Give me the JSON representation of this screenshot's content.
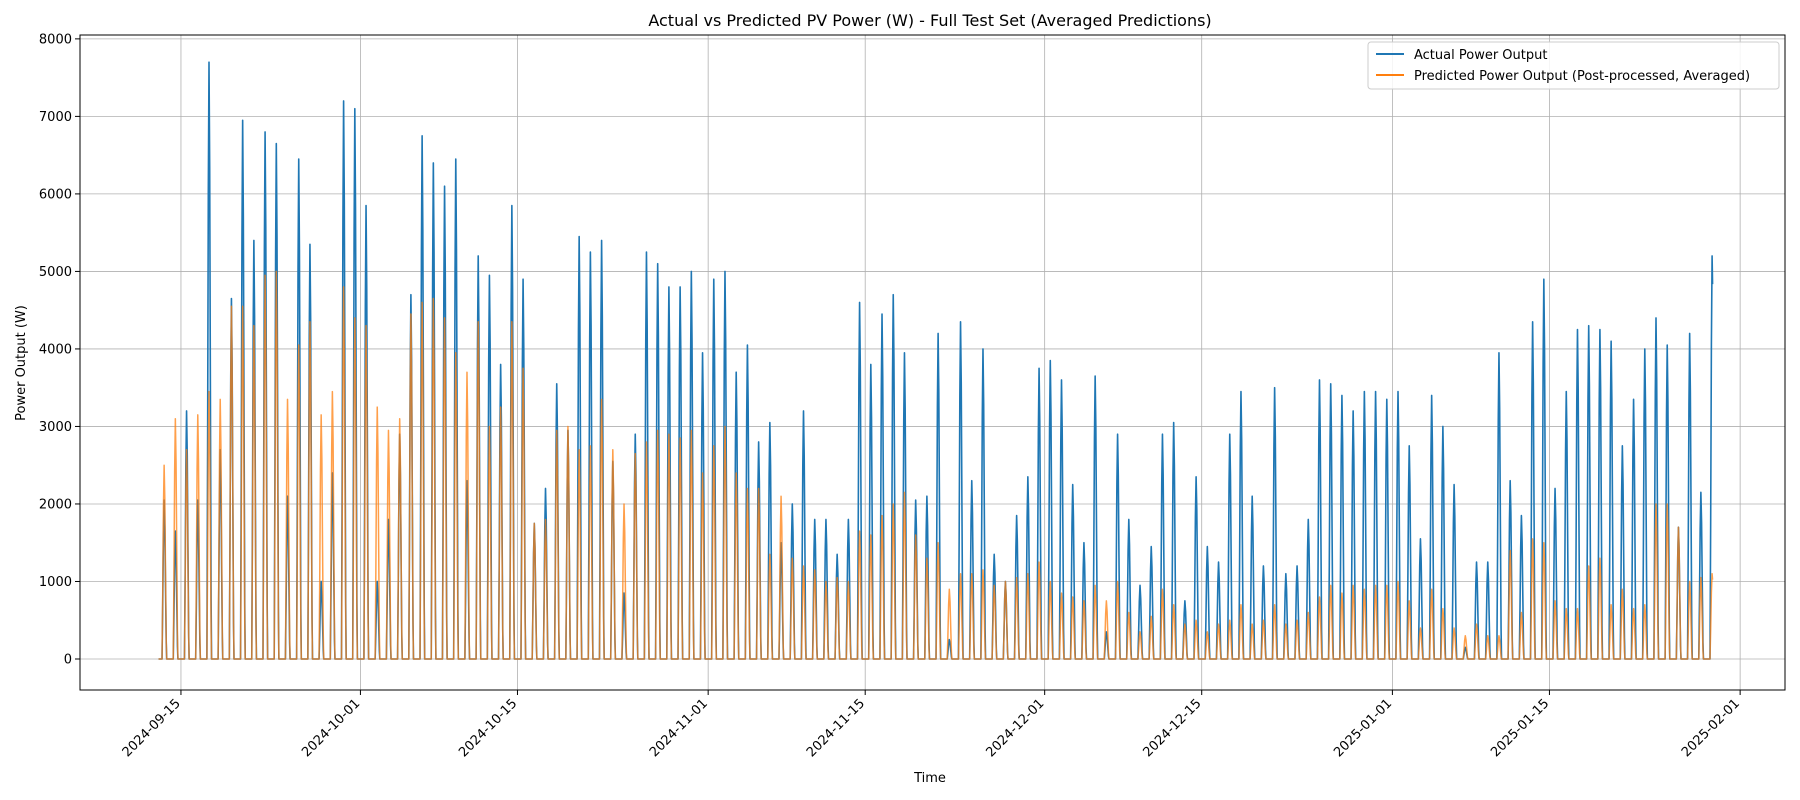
{
  "chart_data": {
    "type": "line",
    "title": "Actual vs Predicted PV Power (W) - Full Test Set (Averaged Predictions)",
    "xlabel": "Time",
    "ylabel": "Power Output (W)",
    "x_range": [
      "2024-09-06",
      "2025-02-05"
    ],
    "ylim": [
      -400,
      8050
    ],
    "y_ticks": [
      0,
      1000,
      2000,
      3000,
      4000,
      5000,
      6000,
      7000,
      8000
    ],
    "x_ticks": [
      "2024-09-15",
      "2024-10-01",
      "2024-10-15",
      "2024-11-01",
      "2024-11-15",
      "2024-12-01",
      "2024-12-15",
      "2025-01-01",
      "2025-01-15",
      "2025-02-01"
    ],
    "grid": true,
    "legend_position": "top-right",
    "daily_series_start_date": "2024-09-13",
    "series": [
      {
        "name": "Actual Power Output",
        "color": "#1f77b4",
        "daily_peaks": [
          2050,
          1650,
          3200,
          2050,
          7700,
          2700,
          4650,
          6950,
          5400,
          6800,
          6650,
          2100,
          6450,
          5350,
          1000,
          2400,
          7200,
          7100,
          5850,
          1000,
          1800,
          2900,
          4700,
          6750,
          6400,
          6100,
          6450,
          2300,
          5200,
          4950,
          3800,
          5850,
          4900,
          1750,
          2200,
          3550,
          2950,
          5450,
          5250,
          5400,
          2550,
          850,
          2900,
          5250,
          5100,
          4800,
          4800,
          5000,
          3950,
          4900,
          5000,
          3700,
          4050,
          2800,
          3050,
          1500,
          2000,
          3200,
          1800,
          1800,
          1350,
          1800,
          4600,
          3800,
          4450,
          4700,
          3950,
          2050,
          2100,
          4200,
          250,
          4350,
          2300,
          4000,
          1350,
          1000,
          1850,
          2350,
          3750,
          3850,
          3600,
          2250,
          1500,
          3650,
          350,
          2900,
          1800,
          950,
          1450,
          2900,
          3050,
          750,
          2350,
          1450,
          1250,
          2900,
          3450,
          2100,
          1200,
          3500,
          1100,
          1200,
          1800,
          3600,
          3550,
          3400,
          3200,
          3450,
          3450,
          3350,
          3450,
          2750,
          1550,
          3400,
          3000,
          2250,
          150,
          1250,
          1250,
          3950,
          2300,
          1850,
          4350,
          4900,
          2200,
          3450,
          4250,
          4300,
          4250,
          4100,
          2750,
          3350,
          4000,
          4400,
          4050,
          1700,
          4200,
          2150,
          5200
        ],
        "last_day_partial": 0.55
      },
      {
        "name": "Predicted Power Output (Post-processed, Averaged)",
        "color": "#ff7f0e",
        "daily_peaks": [
          2500,
          3100,
          2700,
          3150,
          3450,
          3350,
          4550,
          4550,
          4300,
          4950,
          5000,
          3350,
          4050,
          4350,
          3150,
          3450,
          4800,
          4400,
          4300,
          3250,
          2950,
          3100,
          4450,
          4600,
          4650,
          4400,
          3950,
          3700,
          4350,
          3000,
          3250,
          4350,
          3750,
          1750,
          1800,
          2950,
          3000,
          2700,
          2750,
          3350,
          2700,
          2000,
          2650,
          2800,
          2950,
          2900,
          2850,
          2950,
          2400,
          2750,
          3000,
          2400,
          2200,
          2200,
          1350,
          2100,
          1300,
          1200,
          1150,
          1000,
          1050,
          1000,
          1650,
          1600,
          1850,
          2000,
          2150,
          1600,
          1300,
          1500,
          900,
          1100,
          1100,
          1150,
          950,
          1000,
          1050,
          1100,
          1250,
          1000,
          850,
          800,
          750,
          950,
          750,
          1000,
          600,
          350,
          550,
          900,
          700,
          450,
          500,
          350,
          450,
          500,
          700,
          450,
          500,
          700,
          450,
          500,
          600,
          800,
          950,
          850,
          950,
          900,
          950,
          950,
          1000,
          750,
          400,
          900,
          650,
          400,
          300,
          450,
          300,
          300,
          1400,
          600,
          1550,
          1500,
          750,
          650,
          650,
          1200,
          1300,
          700,
          900,
          650,
          700,
          2000,
          2000,
          1700,
          1000,
          1050,
          1100
        ],
        "last_day_partial": 0.55
      }
    ]
  }
}
